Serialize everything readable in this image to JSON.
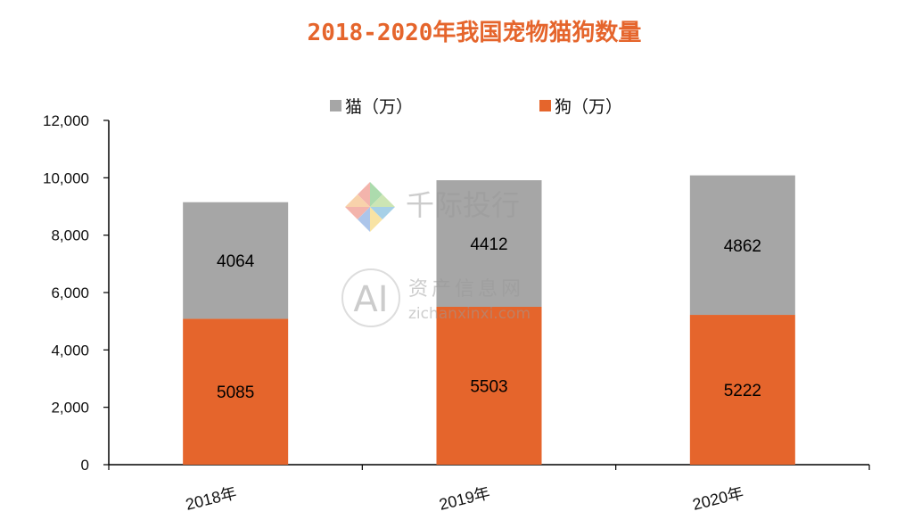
{
  "chart_data": {
    "type": "bar",
    "stacked": true,
    "title": "2018-2020年我国宠物猫狗数量",
    "categories": [
      "2018年",
      "2019年",
      "2020年"
    ],
    "series": [
      {
        "name": "狗（万）",
        "values": [
          5085,
          5503,
          5222
        ],
        "color": "#E5652C"
      },
      {
        "name": "猫（万）",
        "values": [
          4064,
          4412,
          4862
        ],
        "color": "#A6A6A6"
      }
    ],
    "ylim": [
      0,
      12000
    ],
    "yticks": [
      "0",
      "2,000",
      "4,000",
      "6,000",
      "8,000",
      "10,000",
      "12,000"
    ],
    "grid": false,
    "legend_position": "top",
    "title_color": "#E5652C"
  },
  "watermark": {
    "brand_text": "千际投行",
    "ai_text": "AI",
    "site_cn": "资产信息网",
    "site_url": "zichanxinxi.com"
  }
}
